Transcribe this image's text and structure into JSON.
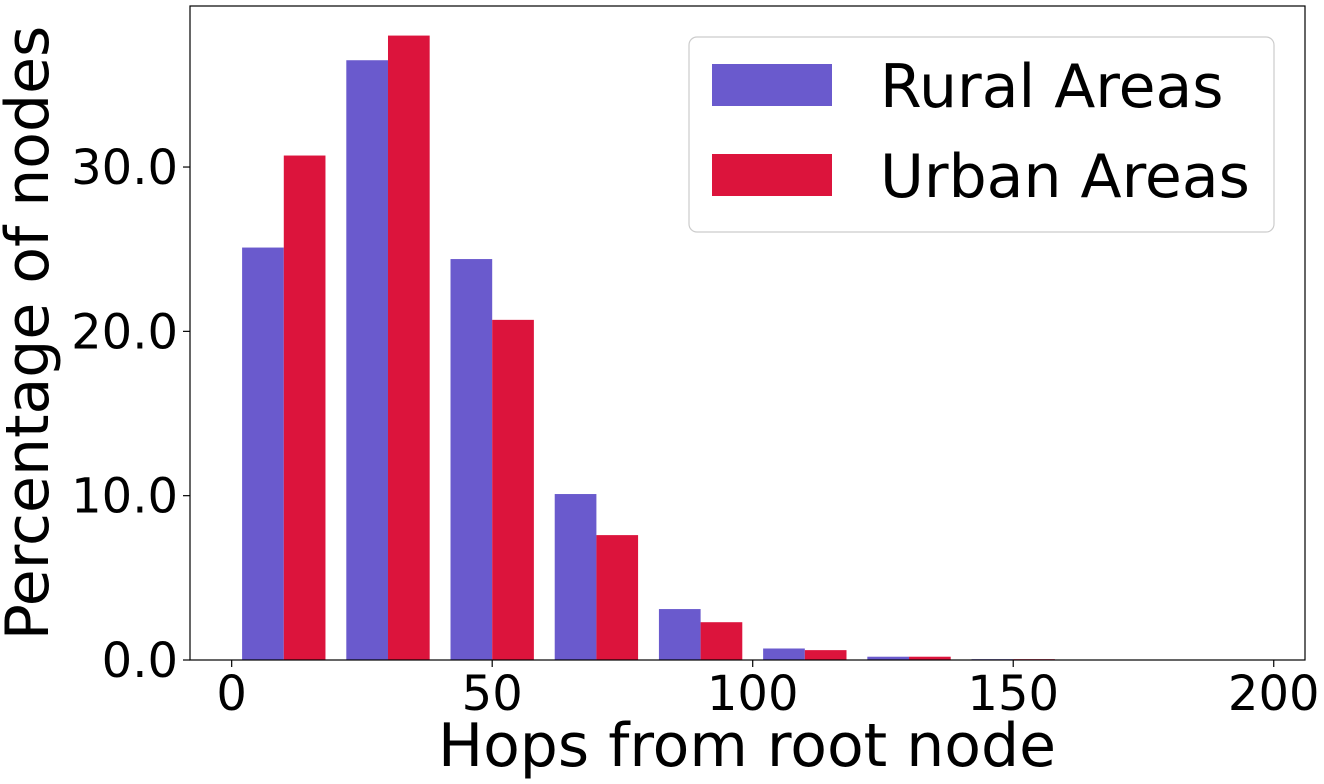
{
  "chart_data": {
    "type": "bar",
    "title": "",
    "xlabel": "Hops from root node",
    "ylabel": "Percentage of nodes",
    "xlim": [
      -8,
      206
    ],
    "ylim": [
      0,
      39.8
    ],
    "xticks": [
      0,
      50,
      100,
      150,
      200
    ],
    "xtick_labels": [
      "0",
      "50",
      "100",
      "150",
      "200"
    ],
    "yticks": [
      0,
      10,
      20,
      30
    ],
    "ytick_labels": [
      "0.0",
      "10.0",
      "20.0",
      "30.0"
    ],
    "grid": false,
    "legend_position": "top-right",
    "bin_width": 20,
    "bin_starts": [
      0,
      20,
      40,
      60,
      80,
      100,
      120,
      140,
      160,
      180
    ],
    "series": [
      {
        "name": "Rural Areas",
        "color": "#6a5acd",
        "values": [
          25.1,
          36.5,
          24.4,
          10.1,
          3.1,
          0.7,
          0.2,
          0.05,
          0.0,
          0.0
        ]
      },
      {
        "name": "Urban Areas",
        "color": "#dc143c",
        "values": [
          30.7,
          38.0,
          20.7,
          7.6,
          2.3,
          0.6,
          0.2,
          0.05,
          0.0,
          0.0
        ]
      }
    ]
  }
}
